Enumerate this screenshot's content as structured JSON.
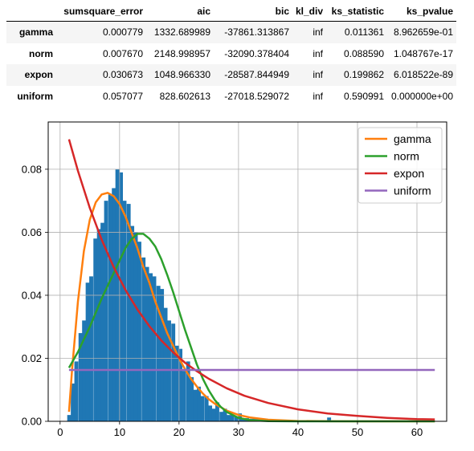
{
  "table": {
    "columns": [
      "",
      "sumsquare_error",
      "aic",
      "bic",
      "kl_div",
      "ks_statistic",
      "ks_pvalue"
    ],
    "rows": [
      {
        "name": "gamma",
        "cells": [
          "0.000779",
          "1332.689989",
          "-37861.313867",
          "inf",
          "0.011361",
          "8.962659e-01"
        ]
      },
      {
        "name": "norm",
        "cells": [
          "0.007670",
          "2148.998957",
          "-32090.378404",
          "inf",
          "0.088590",
          "1.048767e-17"
        ]
      },
      {
        "name": "expon",
        "cells": [
          "0.030673",
          "1048.966330",
          "-28587.844949",
          "inf",
          "0.199862",
          "6.018522e-89"
        ]
      },
      {
        "name": "uniform",
        "cells": [
          "0.057077",
          "828.602613",
          "-27018.529072",
          "inf",
          "0.590991",
          "0.000000e+00"
        ]
      }
    ]
  },
  "chart_data": {
    "type": "bar",
    "xlim": [
      -2,
      65
    ],
    "ylim": [
      0,
      0.095
    ],
    "xticks": [
      0,
      10,
      20,
      30,
      40,
      50,
      60
    ],
    "yticks": [
      0.0,
      0.02,
      0.04,
      0.06,
      0.08
    ],
    "ytick_labels": [
      "0.00",
      "0.02",
      "0.04",
      "0.06",
      "0.08"
    ],
    "grid": true,
    "legend_position": "top-right",
    "histogram": {
      "color": "#1f77b4",
      "bin_width": 0.62,
      "bins": [
        [
          1.2,
          0.002
        ],
        [
          1.8,
          0.012
        ],
        [
          2.4,
          0.019
        ],
        [
          3.1,
          0.028
        ],
        [
          3.7,
          0.032
        ],
        [
          4.3,
          0.044
        ],
        [
          4.9,
          0.046
        ],
        [
          5.6,
          0.058
        ],
        [
          6.2,
          0.061
        ],
        [
          6.8,
          0.063
        ],
        [
          7.4,
          0.07
        ],
        [
          8.1,
          0.072
        ],
        [
          8.7,
          0.074
        ],
        [
          9.3,
          0.08
        ],
        [
          9.9,
          0.079
        ],
        [
          10.5,
          0.07
        ],
        [
          11.2,
          0.069
        ],
        [
          11.8,
          0.062
        ],
        [
          12.4,
          0.06
        ],
        [
          13.0,
          0.057
        ],
        [
          13.7,
          0.052
        ],
        [
          14.3,
          0.049
        ],
        [
          14.9,
          0.047
        ],
        [
          15.5,
          0.046
        ],
        [
          16.2,
          0.043
        ],
        [
          16.8,
          0.042
        ],
        [
          17.4,
          0.036
        ],
        [
          18.0,
          0.032
        ],
        [
          18.7,
          0.031
        ],
        [
          19.3,
          0.024
        ],
        [
          19.9,
          0.023
        ],
        [
          20.5,
          0.016
        ],
        [
          21.2,
          0.019
        ],
        [
          21.8,
          0.014
        ],
        [
          22.4,
          0.01
        ],
        [
          23.0,
          0.011
        ],
        [
          23.6,
          0.008
        ],
        [
          24.3,
          0.008
        ],
        [
          24.9,
          0.005
        ],
        [
          25.5,
          0.004
        ],
        [
          26.1,
          0.006
        ],
        [
          26.8,
          0.003
        ],
        [
          27.4,
          0.004
        ],
        [
          28.0,
          0.002
        ],
        [
          28.6,
          0.002
        ],
        [
          29.3,
          0.0015
        ],
        [
          29.9,
          0.0025
        ],
        [
          30.5,
          0.001
        ],
        [
          31.1,
          0.001
        ],
        [
          31.8,
          0.0008
        ],
        [
          32.4,
          0.001
        ],
        [
          33.0,
          0.0007
        ],
        [
          33.6,
          0.0005
        ],
        [
          34.3,
          0.0004
        ],
        [
          35.5,
          0.0004
        ],
        [
          37.0,
          0.0003
        ],
        [
          38.5,
          0.0003
        ],
        [
          40.0,
          0.0003
        ],
        [
          41.5,
          0.0002
        ],
        [
          44.9,
          0.0012
        ],
        [
          46.5,
          0.0002
        ],
        [
          49.0,
          0.0002
        ],
        [
          52.0,
          0.0002
        ]
      ]
    },
    "series": [
      {
        "name": "gamma",
        "color": "#ff7f0e",
        "x": [
          1.5,
          2,
          3,
          4,
          5,
          6,
          7,
          8,
          9,
          10,
          11,
          12,
          13,
          14,
          15,
          16,
          17,
          18,
          19,
          20,
          21,
          22,
          23,
          24,
          25,
          26,
          28,
          30,
          32,
          35,
          40,
          45,
          50,
          55,
          60,
          63
        ],
        "y": [
          0.003,
          0.016,
          0.038,
          0.054,
          0.064,
          0.0695,
          0.072,
          0.0725,
          0.0715,
          0.069,
          0.065,
          0.06,
          0.055,
          0.049,
          0.044,
          0.038,
          0.033,
          0.028,
          0.024,
          0.02,
          0.0165,
          0.0135,
          0.011,
          0.0088,
          0.007,
          0.0056,
          0.0034,
          0.002,
          0.0012,
          0.0005,
          0.0001,
          2e-05,
          0,
          0,
          0,
          0
        ]
      },
      {
        "name": "norm",
        "color": "#2ca02c",
        "x": [
          1.5,
          3,
          5,
          7,
          9,
          10,
          11,
          12,
          13,
          14,
          15,
          16,
          17,
          18,
          19,
          20,
          21,
          22,
          23,
          24,
          25,
          26,
          27,
          28,
          30,
          32,
          35,
          40,
          50,
          63
        ],
        "y": [
          0.017,
          0.022,
          0.03,
          0.039,
          0.047,
          0.051,
          0.055,
          0.0578,
          0.0595,
          0.0595,
          0.058,
          0.0555,
          0.0515,
          0.0465,
          0.041,
          0.035,
          0.029,
          0.0235,
          0.018,
          0.0135,
          0.0098,
          0.0068,
          0.0046,
          0.003,
          0.0011,
          0.00035,
          5e-05,
          0,
          0,
          0
        ]
      },
      {
        "name": "expon",
        "color": "#d62728",
        "x": [
          1.5,
          3,
          5,
          7,
          9,
          11,
          13,
          15,
          17,
          19,
          21,
          23,
          25,
          28,
          31,
          35,
          40,
          45,
          50,
          55,
          60,
          63
        ],
        "y": [
          0.0895,
          0.0795,
          0.0677,
          0.0576,
          0.049,
          0.0417,
          0.0355,
          0.0302,
          0.0257,
          0.0219,
          0.0186,
          0.0159,
          0.0135,
          0.0105,
          0.0081,
          0.0058,
          0.0038,
          0.0025,
          0.0017,
          0.0011,
          0.0007,
          0.0006
        ]
      },
      {
        "name": "uniform",
        "color": "#9467bd",
        "x": [
          1.5,
          63
        ],
        "y": [
          0.0163,
          0.0163
        ]
      }
    ]
  }
}
